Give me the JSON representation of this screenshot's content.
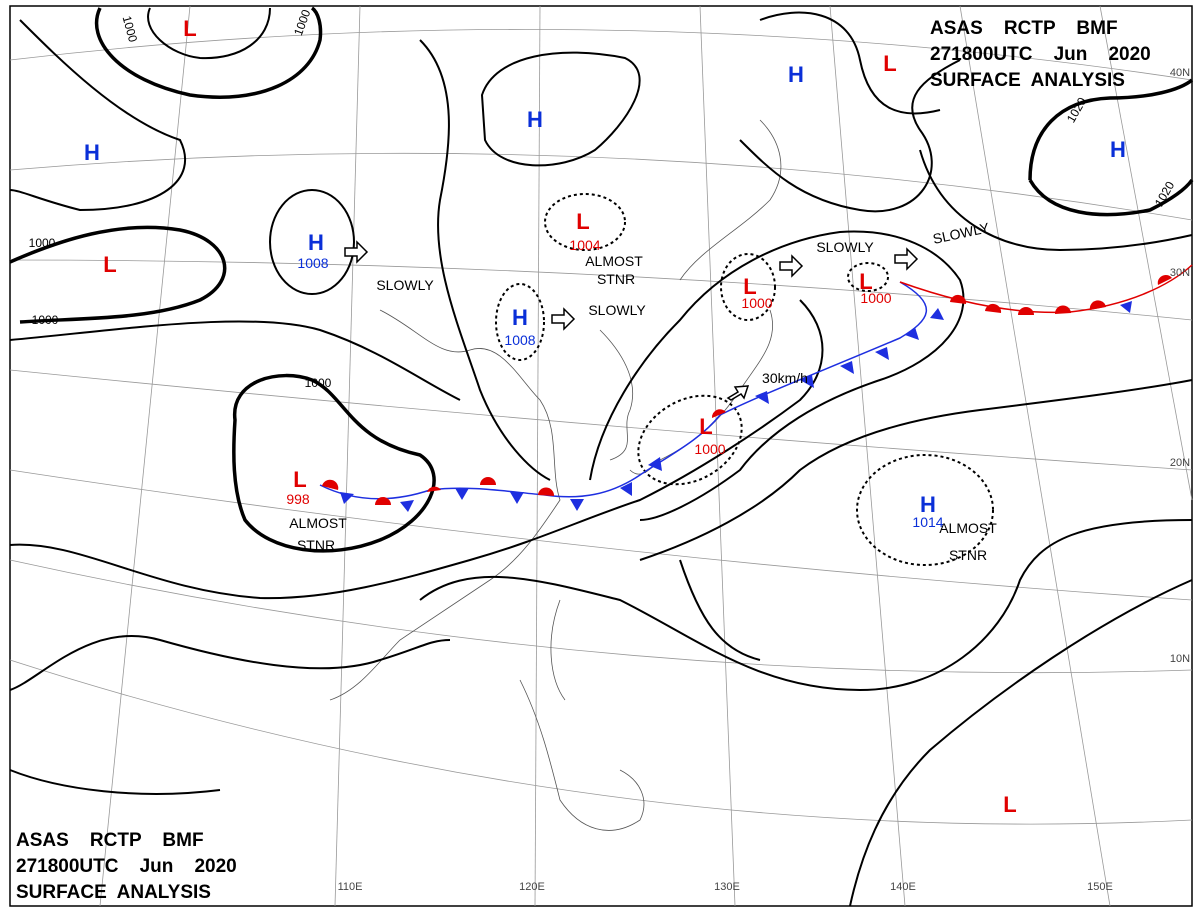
{
  "header": {
    "lines": [
      "ASAS    RCTP    BMF",
      "271800UTC    Jun    2020",
      "SURFACE  ANALYSIS"
    ]
  },
  "footer": {
    "lines": [
      "ASAS    RCTP    BMF",
      "271800UTC    Jun    2020",
      "SURFACE  ANALYSIS"
    ]
  },
  "systems": [
    {
      "label": "L"
    },
    {
      "label": "L"
    },
    {
      "label": "H"
    },
    {
      "label": "H"
    },
    {
      "label": "H"
    },
    {
      "label": "H",
      "pressure": 1008
    },
    {
      "label": "L"
    },
    {
      "label": "L",
      "pressure": 1004
    },
    {
      "label": "H",
      "pressure": 1008
    },
    {
      "label": "L",
      "pressure": 1000
    },
    {
      "label": "L",
      "pressure": 1000
    },
    {
      "label": "L",
      "pressure": 1000
    },
    {
      "label": "L",
      "pressure": 998
    },
    {
      "label": "H",
      "pressure": 1014
    },
    {
      "label": "H"
    },
    {
      "label": "L"
    }
  ],
  "annotations": [
    "SLOWLY",
    "SLOWLY",
    "SLOWLY",
    "SLOWLY",
    "ALMOST",
    "STNR",
    "ALMOST",
    "STNR",
    "ALMOST",
    "STNR",
    "30km/h"
  ],
  "isobar_labels": [
    1000,
    1000,
    1000,
    1000,
    1000,
    1020,
    1020
  ],
  "grid_labels": [
    "110E",
    "120E",
    "130E",
    "140E",
    "150E",
    "40N",
    "30N",
    "20N",
    "10N"
  ]
}
